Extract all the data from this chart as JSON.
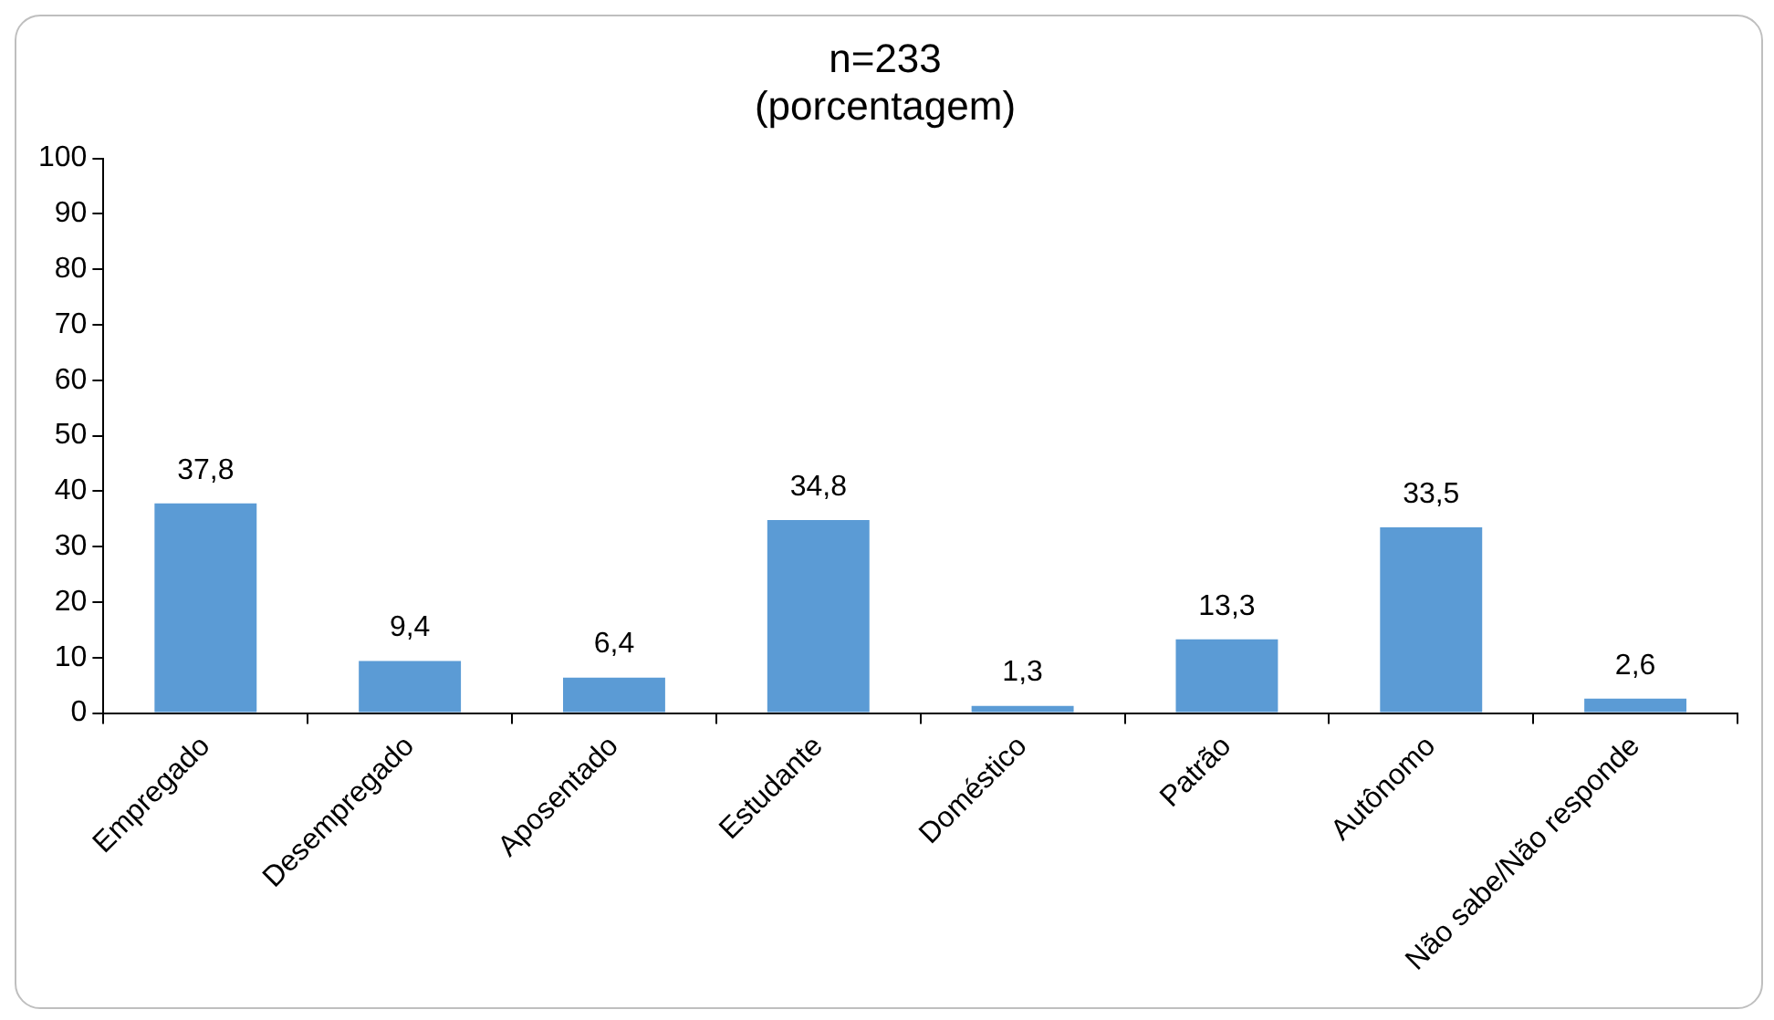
{
  "chart_data": {
    "type": "bar",
    "title": "n=233",
    "subtitle": "(porcentagem)",
    "categories": [
      "Empregado",
      "Desempregado",
      "Aposentado",
      "Estudante",
      "Doméstico",
      "Patrão",
      "Autônomo",
      "Não sabe/Não responde"
    ],
    "values": [
      37.8,
      9.4,
      6.4,
      34.8,
      1.3,
      13.3,
      33.5,
      2.6
    ],
    "value_labels": [
      "37,8",
      "9,4",
      "6,4",
      "34,8",
      "1,3",
      "13,3",
      "33,5",
      "2,6"
    ],
    "color": "#5b9bd5",
    "ylim": [
      0,
      100
    ],
    "yticks": [
      0,
      10,
      20,
      30,
      40,
      50,
      60,
      70,
      80,
      90,
      100
    ],
    "grid": false,
    "legend": false
  }
}
